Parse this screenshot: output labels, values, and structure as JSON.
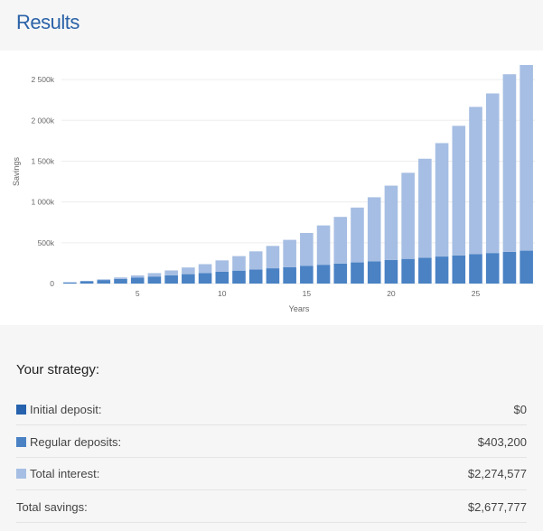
{
  "header": {
    "title": "Results"
  },
  "chart_data": {
    "type": "bar",
    "stacked": true,
    "x": [
      1,
      2,
      3,
      4,
      5,
      6,
      7,
      8,
      9,
      10,
      11,
      12,
      13,
      14,
      15,
      16,
      17,
      18,
      19,
      20,
      21,
      22,
      23,
      24,
      25,
      26,
      27,
      28
    ],
    "xlabel": "Years",
    "ylabel": "Savings",
    "ylim": [
      0,
      2700000
    ],
    "yticks": [
      0,
      500000,
      1000000,
      1500000,
      2000000,
      2500000
    ],
    "ytick_labels": [
      "0",
      "500k",
      "1 000k",
      "1 500k",
      "2 000k",
      "2 500k"
    ],
    "xticks": [
      5,
      10,
      15,
      20,
      25
    ],
    "xtick_labels": [
      "5",
      "10",
      "15",
      "20",
      "25"
    ],
    "grid": true,
    "series": [
      {
        "name": "Regular deposits",
        "color": "#4a82c4",
        "values": [
          14400,
          28800,
          43200,
          57600,
          72000,
          86400,
          100800,
          115200,
          129600,
          144000,
          158400,
          172800,
          187200,
          201600,
          216000,
          230400,
          244800,
          259200,
          273600,
          288000,
          302400,
          316800,
          331200,
          345600,
          360000,
          374400,
          388800,
          403200
        ]
      },
      {
        "name": "Total interest",
        "color": "#a6bee3",
        "values": [
          1000,
          4000,
          9000,
          17000,
          28000,
          42000,
          60000,
          82000,
          108000,
          140000,
          178000,
          222000,
          274000,
          334000,
          404000,
          482000,
          572000,
          672000,
          784000,
          912000,
          1055000,
          1213000,
          1390000,
          1587000,
          1805000,
          1955000,
          2176000,
          2274577
        ]
      }
    ]
  },
  "summary": {
    "title": "Your strategy:",
    "rows": [
      {
        "label": "Initial deposit:",
        "value": "$0",
        "color": "#2662ad"
      },
      {
        "label": "Regular deposits:",
        "value": "$403,200",
        "color": "#4a82c4"
      },
      {
        "label": "Total interest:",
        "value": "$2,274,577",
        "color": "#a6bee3"
      },
      {
        "label": "Total savings:",
        "value": "$2,677,777"
      }
    ]
  }
}
